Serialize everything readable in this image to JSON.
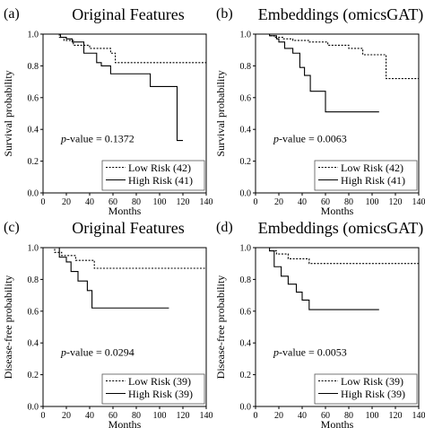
{
  "chart_data": [
    {
      "type": "line",
      "panel_label": "(a)",
      "title": "Original Features",
      "xlabel": "Months",
      "ylabel": "Survival probability",
      "xlim": [
        0,
        140
      ],
      "ylim": [
        0,
        1.0
      ],
      "x_ticks": [
        "0",
        "20",
        "40",
        "60",
        "80",
        "100",
        "120",
        "140"
      ],
      "y_ticks": [
        "0.0",
        "0.2",
        "0.4",
        "0.6",
        "0.8",
        "1.0"
      ],
      "annotation_prefix": "p",
      "annotation_value": "-value = 0.1372",
      "legend_position": "bottom-right",
      "series": [
        {
          "name": "Low Risk (42)",
          "style": "dashed",
          "x": [
            0,
            14,
            18,
            26,
            40,
            58,
            62,
            72,
            140
          ],
          "y": [
            1.0,
            0.98,
            0.96,
            0.93,
            0.91,
            0.88,
            0.82,
            0.82,
            0.82
          ]
        },
        {
          "name": "High Risk (41)",
          "style": "solid",
          "x": [
            0,
            15,
            20,
            25,
            35,
            46,
            50,
            58,
            73,
            92,
            108,
            115,
            120
          ],
          "y": [
            1.0,
            0.98,
            0.97,
            0.95,
            0.88,
            0.82,
            0.8,
            0.75,
            0.75,
            0.67,
            0.67,
            0.33,
            0.33
          ]
        }
      ]
    },
    {
      "type": "line",
      "panel_label": "(b)",
      "title": "Embeddings (omicsGAT)",
      "xlabel": "Months",
      "ylabel": "Survival probability",
      "xlim": [
        0,
        140
      ],
      "ylim": [
        0,
        1.0
      ],
      "x_ticks": [
        "0",
        "20",
        "40",
        "60",
        "80",
        "100",
        "120",
        "140"
      ],
      "y_ticks": [
        "0.0",
        "0.2",
        "0.4",
        "0.6",
        "0.8",
        "1.0"
      ],
      "annotation_prefix": "p",
      "annotation_value": "-value = 0.0063",
      "legend_position": "bottom-right",
      "series": [
        {
          "name": "Low Risk (42)",
          "style": "dashed",
          "x": [
            0,
            12,
            16,
            24,
            32,
            46,
            62,
            80,
            92,
            112,
            140
          ],
          "y": [
            1.0,
            0.99,
            0.98,
            0.97,
            0.96,
            0.95,
            0.93,
            0.91,
            0.87,
            0.72,
            0.72
          ]
        },
        {
          "name": "High Risk (41)",
          "style": "solid",
          "x": [
            0,
            12,
            18,
            20,
            25,
            32,
            38,
            42,
            47,
            60,
            106
          ],
          "y": [
            1.0,
            0.99,
            0.97,
            0.95,
            0.91,
            0.88,
            0.79,
            0.74,
            0.64,
            0.51,
            0.51
          ]
        }
      ]
    },
    {
      "type": "line",
      "panel_label": "(c)",
      "title": "Original Features",
      "xlabel": "Months",
      "ylabel": "Disease-free probability",
      "xlim": [
        0,
        140
      ],
      "ylim": [
        0,
        1.0
      ],
      "x_ticks": [
        "0",
        "20",
        "40",
        "60",
        "80",
        "100",
        "120",
        "140"
      ],
      "y_ticks": [
        "0.0",
        "0.2",
        "0.4",
        "0.6",
        "0.8",
        "1.0"
      ],
      "annotation_prefix": "p",
      "annotation_value": "-value = 0.0294",
      "legend_position": "bottom-right",
      "series": [
        {
          "name": "Low Risk (39)",
          "style": "dashed",
          "x": [
            0,
            10,
            16,
            28,
            44,
            140
          ],
          "y": [
            1.0,
            0.97,
            0.95,
            0.92,
            0.87,
            0.87
          ]
        },
        {
          "name": "High Risk (39)",
          "style": "solid",
          "x": [
            0,
            14,
            20,
            24,
            30,
            38,
            42,
            108
          ],
          "y": [
            1.0,
            0.94,
            0.91,
            0.85,
            0.79,
            0.73,
            0.62,
            0.62
          ]
        }
      ]
    },
    {
      "type": "line",
      "panel_label": "(d)",
      "title": "Embeddings (omicsGAT)",
      "xlabel": "Months",
      "ylabel": "Disease-free probability",
      "xlim": [
        0,
        140
      ],
      "ylim": [
        0,
        1.0
      ],
      "x_ticks": [
        "0",
        "20",
        "40",
        "60",
        "80",
        "100",
        "120",
        "140"
      ],
      "y_ticks": [
        "0.0",
        "0.2",
        "0.4",
        "0.6",
        "0.8",
        "1.0"
      ],
      "annotation_prefix": "p",
      "annotation_value": "-value = 0.0053",
      "legend_position": "bottom-right",
      "series": [
        {
          "name": "Low Risk (39)",
          "style": "dashed",
          "x": [
            0,
            12,
            18,
            28,
            46,
            140
          ],
          "y": [
            1.0,
            0.98,
            0.96,
            0.93,
            0.9,
            0.9
          ]
        },
        {
          "name": "High Risk (39)",
          "style": "solid",
          "x": [
            0,
            12,
            16,
            22,
            28,
            35,
            40,
            46,
            106
          ],
          "y": [
            1.0,
            0.98,
            0.88,
            0.82,
            0.77,
            0.72,
            0.67,
            0.61,
            0.61
          ]
        }
      ]
    }
  ]
}
